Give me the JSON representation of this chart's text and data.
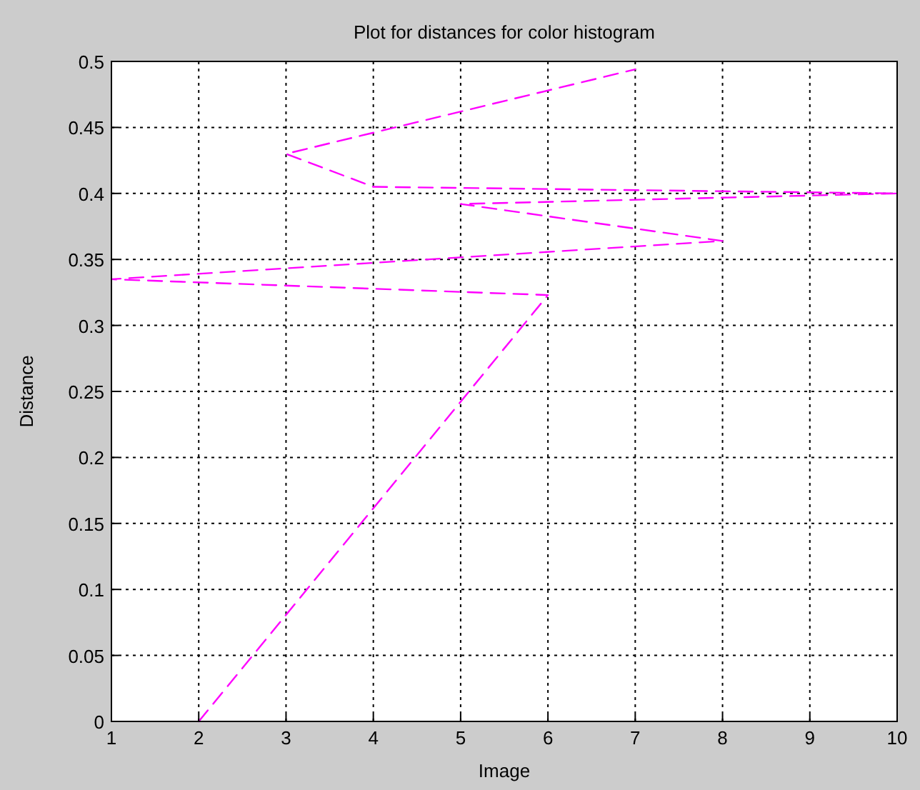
{
  "chart_data": {
    "type": "line",
    "title": "Plot for distances for color histogram",
    "xlabel": "Image",
    "ylabel": "Distance",
    "x": [
      2,
      6,
      1,
      8,
      5,
      10,
      4,
      3,
      7
    ],
    "series": [
      {
        "color": "#ff00ff",
        "values": [
          0,
          0.323,
          0.335,
          0.364,
          0.392,
          0.4,
          0.405,
          0.43,
          0.494
        ]
      }
    ],
    "xlim": [
      1,
      10
    ],
    "xticks": [
      1,
      2,
      3,
      4,
      5,
      6,
      7,
      8,
      9,
      10
    ],
    "ylim": [
      0,
      0.5
    ],
    "yticks": [
      0,
      0.05,
      0.1,
      0.15,
      0.2,
      0.25,
      0.3,
      0.35,
      0.4,
      0.45,
      0.5
    ],
    "grid": true,
    "line_style": "dashed",
    "marker": "none"
  }
}
